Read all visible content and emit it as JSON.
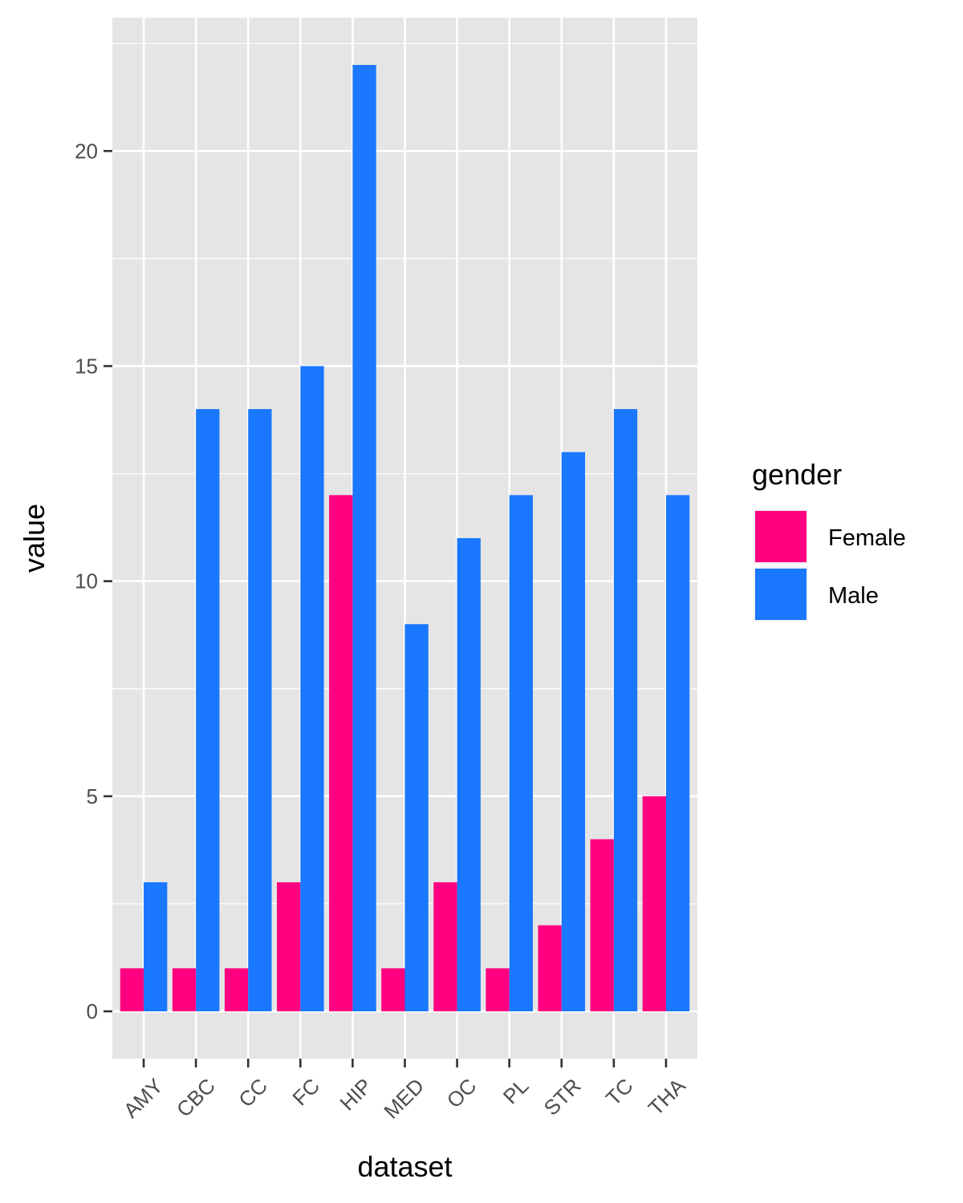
{
  "chart_data": {
    "type": "bar",
    "xlabel": "dataset",
    "ylabel": "value",
    "categories": [
      "AMY",
      "CBC",
      "CC",
      "FC",
      "HIP",
      "MED",
      "OC",
      "PL",
      "STR",
      "TC",
      "THA"
    ],
    "series": [
      {
        "name": "Female",
        "color": "#ff0080",
        "values": [
          1,
          1,
          1,
          3,
          12,
          1,
          3,
          1,
          2,
          4,
          5
        ]
      },
      {
        "name": "Male",
        "color": "#1a77ff",
        "values": [
          3,
          14,
          14,
          15,
          22,
          9,
          11,
          12,
          13,
          14,
          12
        ]
      }
    ],
    "yticks": [
      0,
      5,
      10,
      15,
      20
    ],
    "ylim": [
      -1.1,
      23.1
    ],
    "grid": true,
    "legend": {
      "title": "gender",
      "position": "right"
    },
    "panel_color": "#e5e5e5"
  }
}
